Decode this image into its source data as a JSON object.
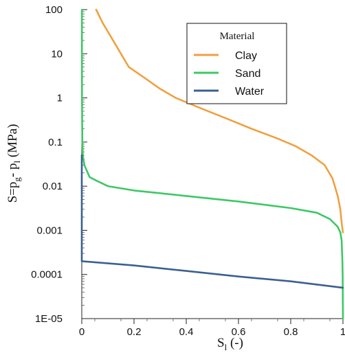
{
  "chart_data": {
    "type": "line",
    "title": "",
    "xlabel": {
      "base": "S",
      "sub": "l",
      "rest": " (-)"
    },
    "ylabel": {
      "pre": "S=p",
      "sub1": "g",
      "mid": "- p",
      "sub2": "l",
      "post": " (MPa)"
    },
    "xlim": [
      0,
      1
    ],
    "ylim": [
      1e-05,
      100
    ],
    "yscale": "log",
    "grid": false,
    "x_ticks": [
      {
        "value": 0,
        "label": "0"
      },
      {
        "value": 0.2,
        "label": "0.2"
      },
      {
        "value": 0.4,
        "label": "0.4"
      },
      {
        "value": 0.6,
        "label": "0.6"
      },
      {
        "value": 0.8,
        "label": "0.8"
      },
      {
        "value": 1,
        "label": "1"
      }
    ],
    "y_ticks": [
      {
        "value": 100,
        "label": "100"
      },
      {
        "value": 10,
        "label": "10"
      },
      {
        "value": 1,
        "label": "1"
      },
      {
        "value": 0.1,
        "label": "0.1"
      },
      {
        "value": 0.01,
        "label": "0.01"
      },
      {
        "value": 0.001,
        "label": "0.001"
      },
      {
        "value": 0.0001,
        "label": "0.0001"
      },
      {
        "value": 1e-05,
        "label": "1E-05"
      }
    ],
    "legend": {
      "title": "Material",
      "position": "top-right"
    },
    "series": [
      {
        "name": "Clay",
        "color": "#f0a040",
        "points": [
          [
            0.055,
            100
          ],
          [
            0.08,
            50
          ],
          [
            0.12,
            20
          ],
          [
            0.18,
            5
          ],
          [
            0.25,
            2.6
          ],
          [
            0.3,
            1.6
          ],
          [
            0.36,
            1.0
          ],
          [
            0.45,
            0.6
          ],
          [
            0.55,
            0.35
          ],
          [
            0.65,
            0.2
          ],
          [
            0.75,
            0.12
          ],
          [
            0.82,
            0.08
          ],
          [
            0.88,
            0.05
          ],
          [
            0.93,
            0.03
          ],
          [
            0.96,
            0.015
          ],
          [
            0.98,
            0.006
          ],
          [
            0.99,
            0.003
          ],
          [
            0.995,
            0.0015
          ],
          [
            1.0,
            0.0009
          ]
        ]
      },
      {
        "name": "Sand",
        "color": "#3cc864",
        "points": [
          [
            0.0005,
            100
          ],
          [
            0.0005,
            10
          ],
          [
            0.0008,
            1
          ],
          [
            0.002,
            0.1
          ],
          [
            0.004,
            0.05
          ],
          [
            0.01,
            0.03
          ],
          [
            0.03,
            0.016
          ],
          [
            0.06,
            0.013
          ],
          [
            0.1,
            0.01
          ],
          [
            0.2,
            0.008
          ],
          [
            0.4,
            0.006
          ],
          [
            0.6,
            0.0045
          ],
          [
            0.8,
            0.0032
          ],
          [
            0.9,
            0.0025
          ],
          [
            0.95,
            0.0018
          ],
          [
            0.98,
            0.0012
          ],
          [
            0.99,
            0.0009
          ],
          [
            0.995,
            0.0006
          ],
          [
            0.998,
            0.0002
          ],
          [
            0.999,
            0.0001
          ],
          [
            1.0,
            1e-05
          ]
        ]
      },
      {
        "name": "Water",
        "color": "#3a6090",
        "points": [
          [
            0.0,
            0.05
          ],
          [
            0.0,
            0.0002
          ],
          [
            0.2,
            0.00016
          ],
          [
            0.4,
            0.00012
          ],
          [
            0.6,
            9e-05
          ],
          [
            0.8,
            7e-05
          ],
          [
            1.0,
            5e-05
          ]
        ]
      }
    ]
  }
}
